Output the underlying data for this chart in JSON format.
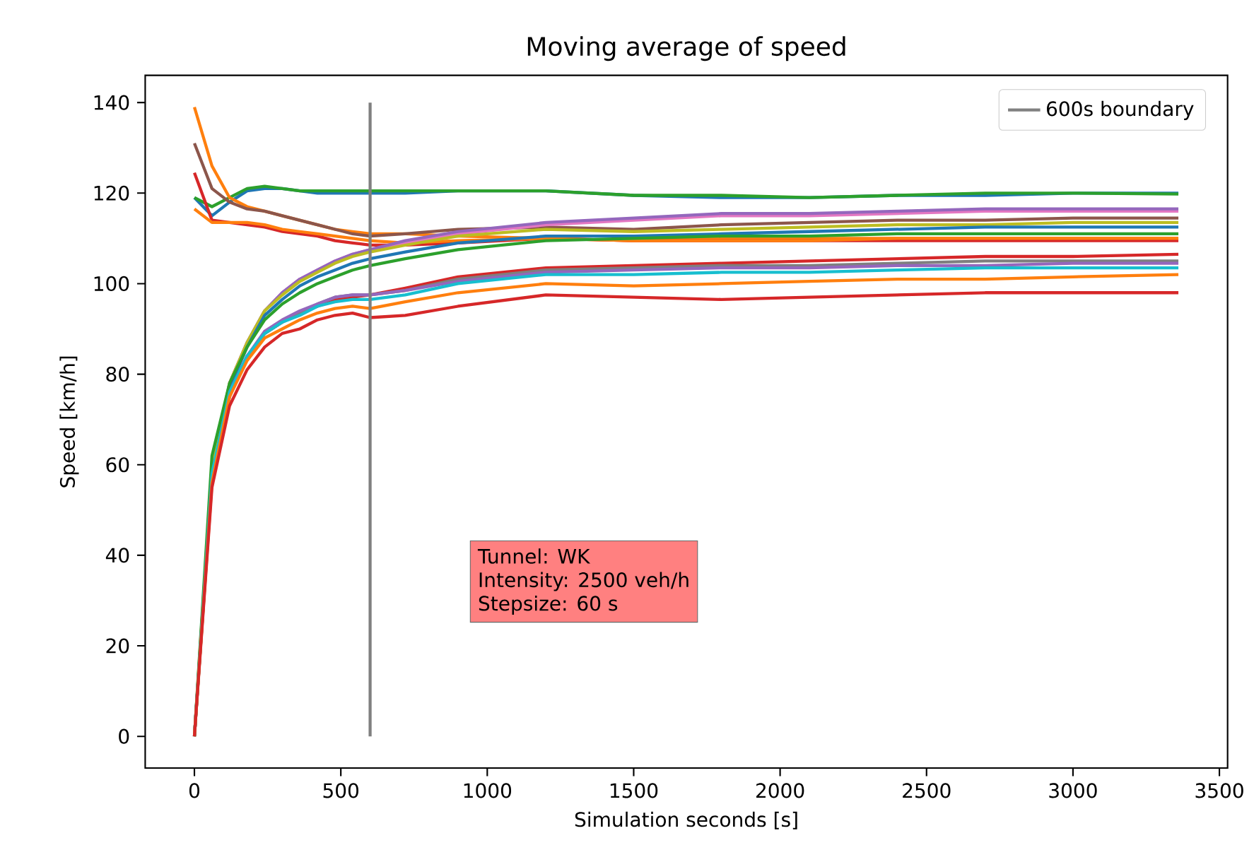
{
  "chart_data": {
    "type": "line",
    "title": "Moving average of speed",
    "xlabel": "Simulation seconds [s]",
    "ylabel": "Speed [km/h]",
    "x": [
      0,
      60,
      120,
      180,
      240,
      300,
      360,
      420,
      480,
      540,
      600,
      720,
      900,
      1200,
      1500,
      1800,
      2100,
      2400,
      2700,
      3000,
      3360
    ],
    "xlim": [
      -168,
      3528
    ],
    "xticks": [
      0,
      500,
      1000,
      1500,
      2000,
      2500,
      3000,
      3500
    ],
    "ylim": [
      -7,
      146
    ],
    "yticks": [
      0,
      20,
      40,
      60,
      80,
      100,
      120,
      140
    ],
    "legend": "top right",
    "annotations": [
      "Tunnel: WK",
      "Intensity: 2500 veh/h",
      "Stepsize: 60 s"
    ],
    "series": [
      {
        "color": "#1f77b4",
        "values": [
          119,
          115,
          118,
          120.5,
          121,
          121,
          120.5,
          120,
          120,
          120,
          120,
          120,
          120.5,
          120.5,
          119.5,
          119,
          119,
          119.5,
          119.5,
          120,
          120
        ]
      },
      {
        "color": "#2ca02c",
        "values": [
          119,
          117,
          119,
          121,
          121.5,
          121,
          120.5,
          120.5,
          120.5,
          120.5,
          120.5,
          120.5,
          120.5,
          120.5,
          119.5,
          119.5,
          119,
          119.5,
          120,
          120,
          119.8
        ]
      },
      {
        "color": "#ff7f0e",
        "values": [
          139,
          126,
          119,
          117,
          116,
          115,
          114,
          113,
          112,
          111.5,
          111,
          111,
          110.5,
          110,
          109.5,
          110,
          110,
          110,
          110,
          110,
          110
        ]
      },
      {
        "color": "#8c564b",
        "values": [
          131,
          121,
          118,
          116.5,
          116,
          115,
          114,
          113,
          112,
          111,
          110.5,
          111,
          112,
          112.5,
          112,
          113,
          113.5,
          114,
          114,
          114.5,
          114.5
        ]
      },
      {
        "color": "#d62728",
        "values": [
          124.5,
          114,
          113.5,
          113,
          112.5,
          111.5,
          111,
          110.5,
          109.5,
          109,
          108.5,
          108.5,
          109,
          110,
          109.5,
          109.5,
          109.5,
          109.5,
          109.5,
          109.5,
          109.5
        ]
      },
      {
        "color": "#ff7f0e",
        "values": [
          116.5,
          113.5,
          113.5,
          113.5,
          113,
          112,
          111.5,
          111,
          110.5,
          110,
          109.5,
          109,
          109.5,
          110,
          109.5,
          109.5,
          109.5,
          110,
          110,
          110,
          110
        ]
      },
      {
        "color": "#e377c2",
        "values": [
          0,
          60,
          78,
          87,
          94,
          98,
          101,
          103,
          105,
          106.5,
          107.5,
          109,
          111,
          113,
          114,
          115,
          115,
          115.5,
          116,
          116,
          116
        ]
      },
      {
        "color": "#9467bd",
        "values": [
          null,
          null,
          78,
          87,
          94,
          98,
          101,
          103,
          105,
          106.5,
          107.5,
          109.5,
          111.5,
          113.5,
          114.5,
          115.5,
          115.5,
          116,
          116.5,
          116.5,
          116.5
        ]
      },
      {
        "color": "#bcbd22",
        "values": [
          0,
          59,
          78,
          87,
          94,
          97.5,
          100.5,
          102.5,
          104.5,
          106,
          107,
          108.5,
          110.5,
          112,
          111.5,
          112,
          112.5,
          113,
          113,
          113.5,
          113.5
        ]
      },
      {
        "color": "#1f77b4",
        "values": [
          0,
          57,
          77,
          86,
          93,
          96.5,
          99.5,
          101.5,
          103,
          104.5,
          105.5,
          107,
          109,
          110.5,
          110.5,
          111,
          111.5,
          112,
          112.5,
          112.5,
          112.5
        ]
      },
      {
        "color": "#2ca02c",
        "values": [
          0,
          62,
          78,
          86,
          92,
          95.5,
          98,
          100,
          101.5,
          103,
          104,
          105.5,
          107.5,
          109.5,
          110,
          110.5,
          110.5,
          111,
          111,
          111,
          111
        ]
      },
      {
        "color": "#d62728",
        "values": [
          0,
          57,
          75,
          84,
          89,
          91.5,
          93.5,
          95,
          96.5,
          97,
          97.5,
          99,
          101.5,
          103.5,
          104,
          104.5,
          105,
          105.5,
          106,
          106,
          106.5
        ]
      },
      {
        "color": "#7f7f7f",
        "values": [
          0,
          57.5,
          75.5,
          84,
          89,
          91.5,
          93.5,
          95.5,
          97,
          97.5,
          97.5,
          98.5,
          101,
          103,
          103.5,
          104,
          104,
          104.5,
          105,
          105,
          105
        ]
      },
      {
        "color": "#9467bd",
        "values": [
          null,
          null,
          76,
          84,
          89.5,
          92,
          94,
          95.5,
          97,
          97.5,
          97.5,
          98.5,
          100.5,
          102.5,
          103,
          103.5,
          103.5,
          104,
          104,
          104.5,
          104.5
        ]
      },
      {
        "color": "#17becf",
        "values": [
          0,
          58,
          76,
          84,
          89,
          91.5,
          93,
          95,
          96,
          96.5,
          96.5,
          97.5,
          100,
          102,
          102,
          102.5,
          102.5,
          103,
          103.5,
          103.5,
          103.5
        ]
      },
      {
        "color": "#ff7f0e",
        "values": [
          0,
          56,
          75,
          83,
          88,
          90,
          92,
          93.5,
          94.5,
          95,
          94.5,
          96,
          98,
          100,
          99.5,
          100,
          100.5,
          101,
          101,
          101.5,
          102
        ]
      },
      {
        "color": "#d62728",
        "values": [
          0,
          55,
          73,
          81,
          86,
          89,
          90,
          92,
          93,
          93.5,
          92.5,
          93,
          95,
          97.5,
          97,
          96.5,
          97,
          97.5,
          98,
          98,
          98
        ]
      },
      {
        "name": "600s boundary",
        "color": "#808080",
        "x": [
          600,
          600
        ],
        "values": [
          0,
          140
        ]
      }
    ]
  }
}
